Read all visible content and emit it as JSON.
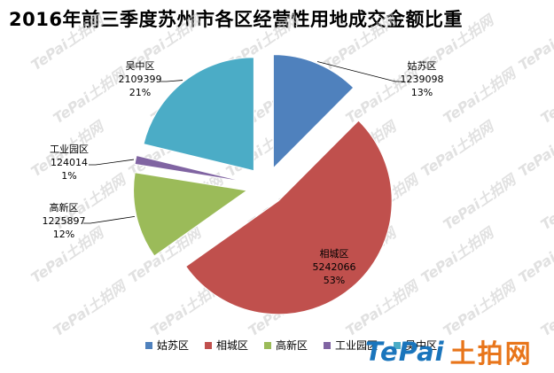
{
  "chart_data": {
    "type": "pie",
    "title": "2016年前三季度苏州市各区经营性用地成交金额比重",
    "categories": [
      "姑苏区",
      "相城区",
      "高新区",
      "工业园区",
      "吴中区"
    ],
    "values": [
      1239098,
      5242066,
      1225897,
      124014,
      2109399
    ],
    "percent_labels": [
      "13%",
      "53%",
      "12%",
      "1%",
      "21%"
    ],
    "colors": [
      "#4f81bd",
      "#c0504d",
      "#9bbb59",
      "#8064a2",
      "#4bacc6"
    ],
    "exploded": true,
    "legend_position": "bottom"
  },
  "watermark": {
    "text": "TePai土拍网",
    "brand_latin": "TePai",
    "brand_cn": "土拍网"
  }
}
